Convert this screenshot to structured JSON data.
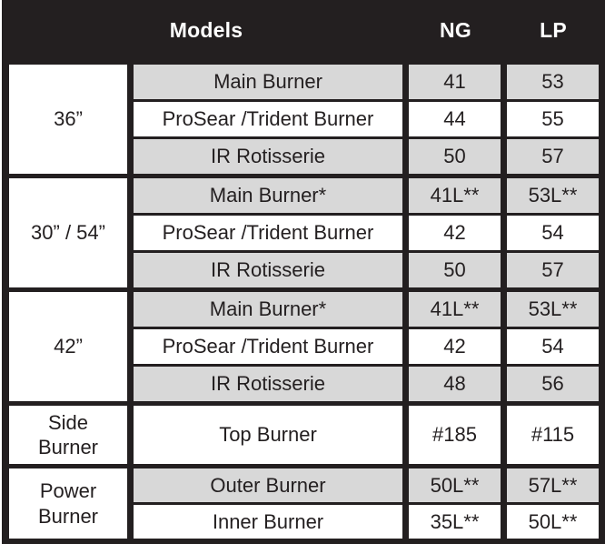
{
  "colors": {
    "table_black": "#231f20",
    "row_gray": "#d8d8d8",
    "row_white": "#ffffff",
    "text": "#231f20",
    "header_text": "#ffffff"
  },
  "header": {
    "models_label": "Models",
    "ng_label": "NG",
    "lp_label": "LP"
  },
  "chart_data": {
    "type": "table",
    "columns": [
      "Model",
      "Burner",
      "NG",
      "LP"
    ],
    "rows": [
      [
        "36”",
        "Main Burner",
        "41",
        "53"
      ],
      [
        "36”",
        "ProSear /Trident Burner",
        "44",
        "55"
      ],
      [
        "36”",
        "IR Rotisserie",
        "50",
        "57"
      ],
      [
        "30” / 54”",
        "Main Burner*",
        "41L**",
        "53L**"
      ],
      [
        "30” / 54”",
        "ProSear /Trident Burner",
        "42",
        "54"
      ],
      [
        "30” / 54”",
        "IR Rotisserie",
        "50",
        "57"
      ],
      [
        "42”",
        "Main Burner*",
        "41L**",
        "53L**"
      ],
      [
        "42”",
        "ProSear /Trident Burner",
        "42",
        "54"
      ],
      [
        "42”",
        "IR Rotisserie",
        "48",
        "56"
      ],
      [
        "Side Burner",
        "Top Burner",
        "#185",
        "#115"
      ],
      [
        "Power Burner",
        "Outer Burner",
        "50L**",
        "57L**"
      ],
      [
        "Power Burner",
        "Inner Burner",
        "35L**",
        "50L**"
      ]
    ]
  },
  "groups": [
    {
      "model": "36”",
      "rows": [
        {
          "burner": "Main Burner",
          "ng": "41",
          "lp": "53",
          "shade": "gray",
          "size": "std"
        },
        {
          "burner": "ProSear /Trident Burner",
          "ng": "44",
          "lp": "55",
          "shade": "white",
          "size": "std"
        },
        {
          "burner": "IR Rotisserie",
          "ng": "50",
          "lp": "57",
          "shade": "gray",
          "size": "std"
        }
      ]
    },
    {
      "model": "30” / 54”",
      "rows": [
        {
          "burner": "Main Burner*",
          "ng": "41L**",
          "lp": "53L**",
          "shade": "gray",
          "size": "std"
        },
        {
          "burner": "ProSear /Trident Burner",
          "ng": "42",
          "lp": "54",
          "shade": "white",
          "size": "std"
        },
        {
          "burner": "IR Rotisserie",
          "ng": "50",
          "lp": "57",
          "shade": "gray",
          "size": "std"
        }
      ]
    },
    {
      "model": "42”",
      "rows": [
        {
          "burner": "Main Burner*",
          "ng": "41L**",
          "lp": "53L**",
          "shade": "gray",
          "size": "std"
        },
        {
          "burner": "ProSear /Trident Burner",
          "ng": "42",
          "lp": "54",
          "shade": "white",
          "size": "std"
        },
        {
          "burner": "IR Rotisserie",
          "ng": "48",
          "lp": "56",
          "shade": "gray",
          "size": "std"
        }
      ]
    },
    {
      "model": "Side\nBurner",
      "rows": [
        {
          "burner": "Top Burner",
          "ng": "#185",
          "lp": "#115",
          "shade": "white",
          "size": "tall"
        }
      ]
    },
    {
      "model": "Power\nBurner",
      "rows": [
        {
          "burner": "Outer Burner",
          "ng": "50L**",
          "lp": "57L**",
          "shade": "gray",
          "size": "short"
        },
        {
          "burner": "Inner Burner",
          "ng": "35L**",
          "lp": "50L**",
          "shade": "white",
          "size": "short"
        }
      ]
    }
  ]
}
